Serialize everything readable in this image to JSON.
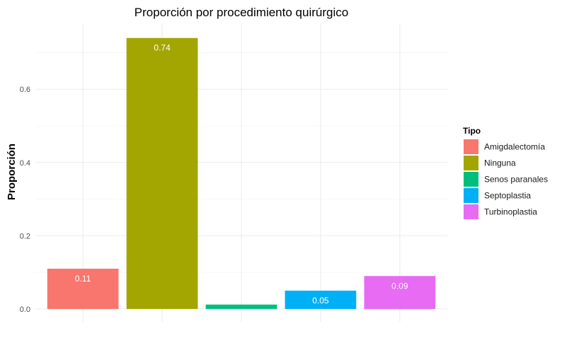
{
  "chart_data": {
    "type": "bar",
    "title": "Proporción por procedimiento quirúrgico",
    "xlabel": "",
    "ylabel": "Proporción",
    "categories": [
      "Amigdalectomía",
      "Ninguna",
      "Senos paranales",
      "Septoplastia",
      "Turbinoplastia"
    ],
    "values": [
      0.11,
      0.74,
      0.012,
      0.05,
      0.09
    ],
    "data_labels": [
      "0.11",
      "0.74",
      "",
      "0.05",
      "0.09"
    ],
    "colors": [
      "#F8766D",
      "#A3A500",
      "#00BF7D",
      "#00B0F6",
      "#E76BF3"
    ],
    "ylim": [
      -0.035,
      0.78
    ],
    "yticks": [
      0.0,
      0.2,
      0.4,
      0.6
    ],
    "ytick_labels": [
      "0.0",
      "0.2",
      "0.4",
      "0.6"
    ],
    "grid": true,
    "legend": {
      "title": "Tipo",
      "position": "right",
      "entries": [
        "Amigdalectomía",
        "Ninguna",
        "Senos paranales",
        "Septoplastia",
        "Turbinoplastia"
      ]
    }
  }
}
